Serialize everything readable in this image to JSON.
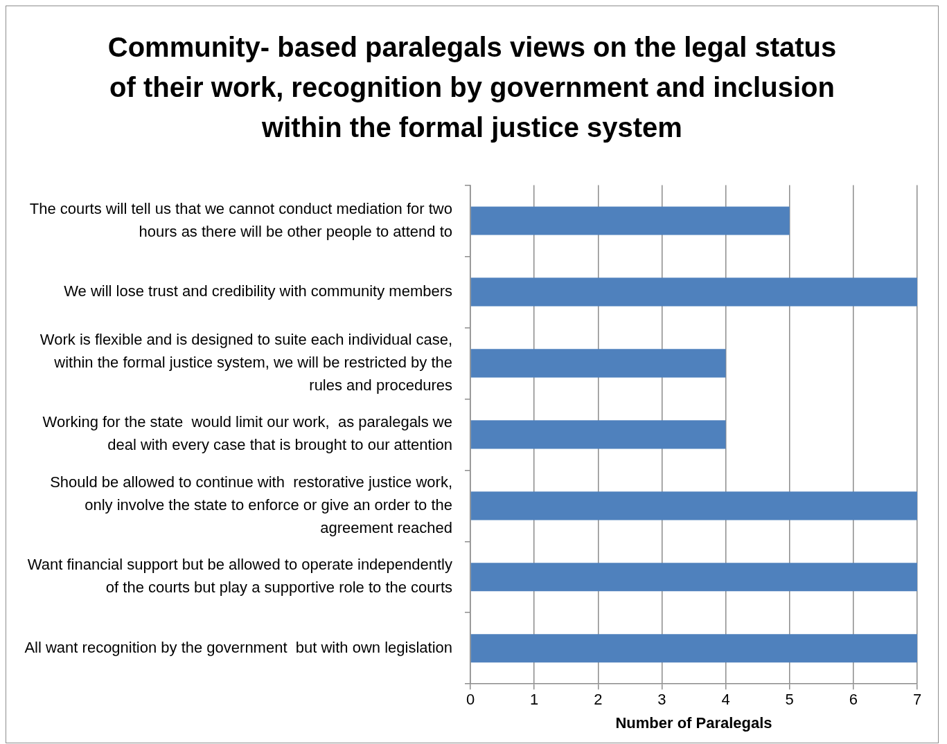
{
  "chart_data": {
    "type": "bar",
    "orientation": "horizontal",
    "title": "Community- based paralegals views on the legal status of their work, recognition by government and inclusion within the formal justice system",
    "xlabel": "Number of Paralegals",
    "categories": [
      "The courts will tell us that we cannot conduct mediation for two hours as there will be other people to attend to",
      "We will lose trust and credibility with community members",
      "Work is flexible and is designed to suite each individual case, within the formal justice system, we will be restricted by the rules and procedures",
      "Working for the state  would limit our work,  as paralegals we deal with every case that is brought to our attention",
      "Should be allowed to continue with  restorative justice work, only involve the state to enforce or give an order to the agreement reached",
      "Want financial support but be allowed to operate independently of the courts but play a supportive role to the courts",
      "All want recognition by the government  but with own legislation"
    ],
    "values": [
      5,
      7,
      4,
      4,
      7,
      7,
      7
    ],
    "color": "#4f81bd",
    "xlim": [
      0,
      7
    ],
    "xticks": [
      0,
      1,
      2,
      3,
      4,
      5,
      6,
      7
    ],
    "grid": "x"
  }
}
